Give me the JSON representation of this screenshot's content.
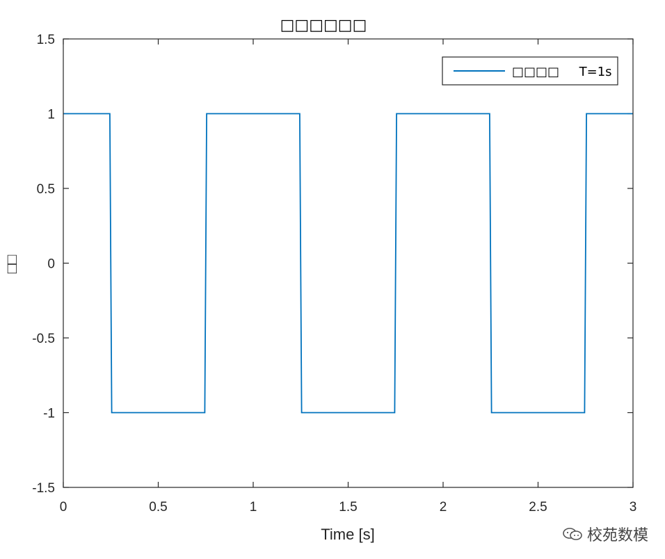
{
  "chart_data": {
    "type": "line",
    "title": "□□□□□□",
    "xlabel": "Time [s]",
    "ylabel": "□□",
    "xlim": [
      0,
      3
    ],
    "ylim": [
      -1.5,
      1.5
    ],
    "xticks": [
      0,
      0.5,
      1,
      1.5,
      2,
      2.5,
      3
    ],
    "xtick_labels": [
      "0",
      "0.5",
      "1",
      "1.5",
      "2",
      "2.5",
      "3"
    ],
    "yticks": [
      1.5,
      1,
      0.5,
      0,
      -0.5,
      -1,
      -1.5
    ],
    "ytick_labels": [
      "1.5",
      "1",
      "0.5",
      "0",
      "-0.5",
      "-1",
      "-1.5"
    ],
    "grid": false,
    "legend_position": "top-right",
    "series": [
      {
        "name": "□□□□     T=1s",
        "color": "#0072BD",
        "x": [
          0,
          0.245,
          0.255,
          0.745,
          0.755,
          1.245,
          1.255,
          1.745,
          1.755,
          2.245,
          2.255,
          2.745,
          2.755,
          3
        ],
        "y": [
          1,
          1,
          -1,
          -1,
          1,
          1,
          -1,
          -1,
          1,
          1,
          -1,
          -1,
          1,
          1
        ]
      }
    ]
  },
  "watermark": {
    "icon": "wechat-icon",
    "text": "校苑数模"
  }
}
